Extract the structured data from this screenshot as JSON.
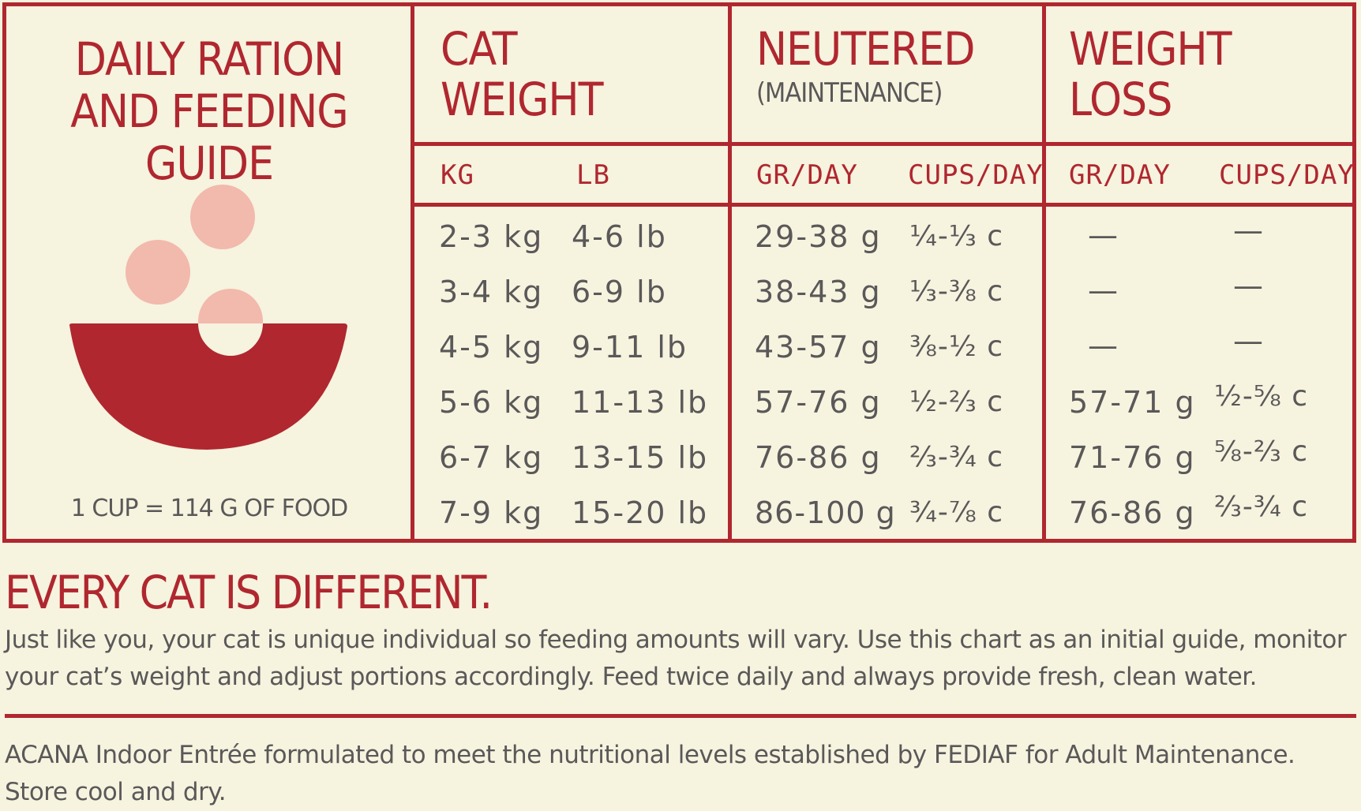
{
  "guide": {
    "title_line1": "DAILY RATION",
    "title_line2": "AND FEEDING GUIDE",
    "cup_note": "1 CUP = 114 G OF FOOD"
  },
  "headers": {
    "cat_weight": [
      "CAT",
      "WEIGHT"
    ],
    "neutered": "NEUTERED",
    "neutered_sub": "(MAINTENANCE)",
    "weight_loss": [
      "WEIGHT",
      "LOSS"
    ]
  },
  "columns": {
    "kg": "KG",
    "lb": "LB",
    "neutered_gr": "GR/DAY",
    "neutered_cups": "CUPS/DAY",
    "loss_gr": "GR/DAY",
    "loss_cups": "CUPS/DAY"
  },
  "rows": [
    {
      "kg": "2-3 kg",
      "lb": "4-6 lb",
      "neutered_gr": "29-38 g",
      "neutered_cups": "¼-⅓ c",
      "loss_gr": "—",
      "loss_cups": "—"
    },
    {
      "kg": "3-4 kg",
      "lb": "6-9 lb",
      "neutered_gr": "38-43 g",
      "neutered_cups": "⅓-⅜ c",
      "loss_gr": "—",
      "loss_cups": "—"
    },
    {
      "kg": "4-5 kg",
      "lb": "9-11 lb",
      "neutered_gr": "43-57 g",
      "neutered_cups": "⅜-½ c",
      "loss_gr": "—",
      "loss_cups": "—"
    },
    {
      "kg": "5-6 kg",
      "lb": "11-13 lb",
      "neutered_gr": "57-76 g",
      "neutered_cups": "½-⅔ c",
      "loss_gr": "57-71 g",
      "loss_cups": "½-⅝ c"
    },
    {
      "kg": "6-7 kg",
      "lb": "13-15 lb",
      "neutered_gr": "76-86 g",
      "neutered_cups": "⅔-¾ c",
      "loss_gr": "71-76 g",
      "loss_cups": "⅝-⅔ c"
    },
    {
      "kg": "7-9 kg",
      "lb": "15-20 lb",
      "neutered_gr": "86-100 g",
      "neutered_cups": "¾-⅞ c",
      "loss_gr": "76-86 g",
      "loss_cups": "⅔-¾ c"
    }
  ],
  "notice": {
    "heading": "EVERY CAT IS DIFFERENT.",
    "body": "Just like you, your cat is unique individual so feeding amounts will vary. Use this chart as an initial guide, monitor your cat’s weight and adjust portions accordingly. Feed twice daily and always provide fresh, clean water.",
    "footer": "ACANA Indoor Entrée formulated to meet the nutritional levels established by FEDIAF  for Adult Maintenance. Store cool and dry."
  },
  "colors": {
    "accent": "#b0272f",
    "background": "#f6f3df",
    "text": "#5a5858",
    "kibble": "#f2b9ad"
  },
  "icons": {
    "bowl": "food-bowl-icon"
  }
}
